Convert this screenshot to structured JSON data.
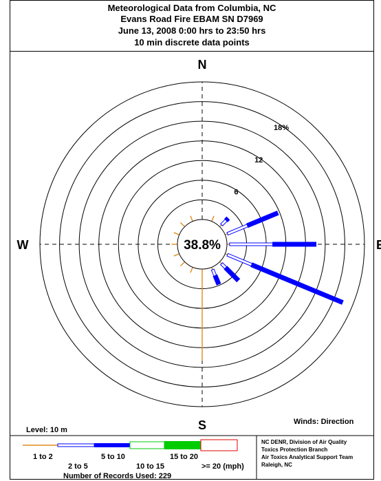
{
  "header": {
    "lines": [
      "Meteorological Data from Columbia, NC",
      "Evans Road Fire EBAM SN D7969",
      "June 13, 2008 0:00 hrs to 23:50 hrs",
      "10 min discrete data points"
    ]
  },
  "compass": {
    "north": "N",
    "south": "S",
    "west": "W",
    "east": "E"
  },
  "level_label": "Level: 10 m",
  "winds_label": "Winds: Direction",
  "legend": {
    "ranges": [
      "1 to 2",
      "2 to 5",
      "5 to 10",
      "10 to 15",
      "15 to 20",
      ">= 20 (mph)"
    ],
    "records": "Number of Records Used: 229"
  },
  "credits": [
    "NC DENR, Division of Air Quality",
    "Toxics Protection Branch",
    "Air Toxics Analytical Support Team",
    "Raleigh, NC"
  ],
  "colors": {
    "speed_1_2": "#e08a1c",
    "speed_2_5": "#0000ff",
    "speed_5_10": "#0000ff",
    "speed_10_15": "#00cc00",
    "speed_15_20": "#00cc00",
    "speed_20_plus": "#e00000"
  },
  "chart_data": {
    "type": "wind-rose",
    "calm_percent": "38.8%",
    "radial_unit": "%",
    "radial_labels": [
      {
        "value": 6,
        "text": "6"
      },
      {
        "value": 12,
        "text": "12"
      },
      {
        "value": 18,
        "text": "18%"
      }
    ],
    "rings": [
      3,
      6,
      9,
      12,
      15,
      18,
      21
    ],
    "max_radius_value": 21,
    "speed_bins": [
      "1 to 2",
      "2 to 5",
      "5 to 10",
      "10 to 15",
      "15 to 20",
      ">= 20"
    ],
    "petals": [
      {
        "direction_deg": 45,
        "segments": [
          0.4,
          1.0,
          0.4,
          0,
          0,
          0
        ]
      },
      {
        "direction_deg": 67.5,
        "segments": [
          0.4,
          3.3,
          5.0,
          0,
          0,
          0
        ]
      },
      {
        "direction_deg": 90,
        "segments": [
          0.4,
          6.6,
          6.6,
          0,
          0,
          0
        ]
      },
      {
        "direction_deg": 112.5,
        "segments": [
          0.4,
          4.0,
          15.0,
          0,
          0,
          0
        ]
      },
      {
        "direction_deg": 135,
        "segments": [
          0.4,
          0.9,
          2.7,
          0,
          0,
          0
        ]
      },
      {
        "direction_deg": 157.5,
        "segments": [
          0.4,
          1.0,
          1.4,
          0,
          0,
          0
        ]
      },
      {
        "direction_deg": 180,
        "segments": [
          14.0,
          0,
          0,
          0,
          0,
          0
        ]
      },
      {
        "direction_deg": 202.5,
        "segments": [
          0.9,
          0,
          0,
          0,
          0,
          0
        ]
      },
      {
        "direction_deg": 225,
        "segments": [
          0.9,
          0,
          0,
          0,
          0,
          0
        ]
      },
      {
        "direction_deg": 247.5,
        "segments": [
          0.9,
          0,
          0,
          0,
          0,
          0
        ]
      },
      {
        "direction_deg": 270,
        "segments": [
          0.9,
          0,
          0,
          0,
          0,
          0
        ]
      },
      {
        "direction_deg": 292.5,
        "segments": [
          0.9,
          0,
          0,
          0,
          0,
          0
        ]
      },
      {
        "direction_deg": 315,
        "segments": [
          0.9,
          0,
          0,
          0,
          0,
          0
        ]
      },
      {
        "direction_deg": 337.5,
        "segments": [
          0.9,
          0,
          0,
          0,
          0,
          0
        ]
      },
      {
        "direction_deg": 22.5,
        "segments": [
          0.9,
          0,
          0,
          0,
          0,
          0
        ]
      }
    ]
  }
}
